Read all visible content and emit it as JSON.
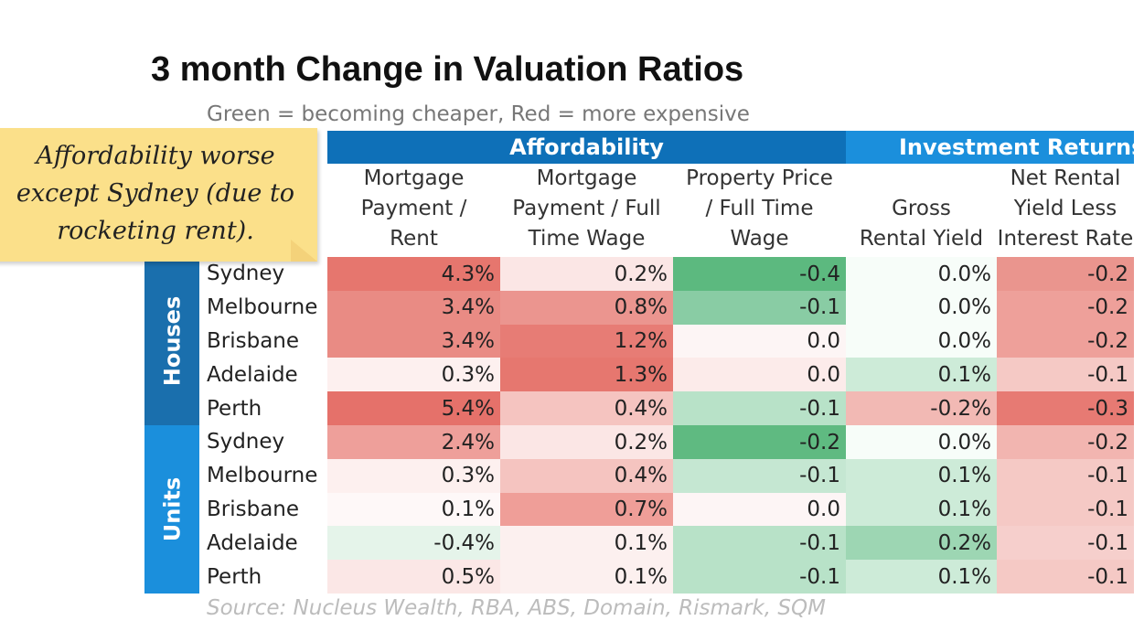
{
  "chart_data": {
    "type": "table",
    "title": "3 month Change in Valuation Ratios",
    "subtitle": "Green = becoming cheaper, Red = more expensive",
    "source": "Source: Nucleus Wealth, RBA, ABS, Domain, Rismark, SQM",
    "column_groups": [
      {
        "name": "Affordability",
        "color": "#0e70b8"
      },
      {
        "name": "Investment Returns",
        "color": "#1b8fdc"
      }
    ],
    "columns": [
      {
        "label_lines": [
          "Mortgage",
          "Payment /",
          "Rent"
        ],
        "group": 0
      },
      {
        "label_lines": [
          "Mortgage",
          "Payment / Full",
          "Time Wage"
        ],
        "group": 0
      },
      {
        "label_lines": [
          "Property Price",
          "/ Full Time",
          "Wage"
        ],
        "group": 0
      },
      {
        "label_lines": [
          "Gross",
          "Rental Yield"
        ],
        "group": 1
      },
      {
        "label_lines": [
          "Net Rental",
          "Yield Less",
          "Interest Rate"
        ],
        "group": 1
      }
    ],
    "sections": [
      {
        "name": "Houses",
        "color": "#1a6fad",
        "rows": [
          {
            "city": "Sydney",
            "values": [
              "4.3%",
              "0.2%",
              "-0.4",
              "0.0%",
              "-0.2"
            ]
          },
          {
            "city": "Melbourne",
            "values": [
              "3.4%",
              "0.8%",
              "-0.1",
              "0.0%",
              "-0.2"
            ]
          },
          {
            "city": "Brisbane",
            "values": [
              "3.4%",
              "1.2%",
              "0.0",
              "0.0%",
              "-0.2"
            ]
          },
          {
            "city": "Adelaide",
            "values": [
              "0.3%",
              "1.3%",
              "0.0",
              "0.1%",
              "-0.1"
            ]
          },
          {
            "city": "Perth",
            "values": [
              "5.4%",
              "0.4%",
              "-0.1",
              "-0.2%",
              "-0.3"
            ]
          }
        ]
      },
      {
        "name": "Units",
        "color": "#1b8fdc",
        "rows": [
          {
            "city": "Sydney",
            "values": [
              "2.4%",
              "0.2%",
              "-0.2",
              "0.0%",
              "-0.2"
            ]
          },
          {
            "city": "Melbourne",
            "values": [
              "0.3%",
              "0.4%",
              "-0.1",
              "0.1%",
              "-0.1"
            ]
          },
          {
            "city": "Brisbane",
            "values": [
              "0.1%",
              "0.7%",
              "0.0",
              "0.1%",
              "-0.1"
            ]
          },
          {
            "city": "Adelaide",
            "values": [
              "-0.4%",
              "0.1%",
              "-0.1",
              "0.2%",
              "-0.1"
            ]
          },
          {
            "city": "Perth",
            "values": [
              "0.5%",
              "0.1%",
              "-0.1",
              "0.1%",
              "-0.1"
            ]
          }
        ]
      }
    ],
    "cell_colors": [
      [
        "#e6766e",
        "#fbe6e5",
        "#5cb97f",
        "#f7fdf9",
        "#ea958e"
      ],
      [
        "#e98b84",
        "#eb958f",
        "#89cca4",
        "#f7fdf9",
        "#eea09a"
      ],
      [
        "#e98b84",
        "#e77c75",
        "#fdf5f5",
        "#f7fdf9",
        "#eea09a"
      ],
      [
        "#fdf0ef",
        "#e6776f",
        "#fcebea",
        "#cdebd8",
        "#f5c9c5"
      ],
      [
        "#e5716a",
        "#f5c4c0",
        "#b8e2c8",
        "#f2b9b4",
        "#e77a73"
      ],
      [
        "#ee9f9a",
        "#fbe6e5",
        "#5fba81",
        "#f7fdf9",
        "#f2b5b0"
      ],
      [
        "#fdf0ef",
        "#f5c4c0",
        "#c5e7d2",
        "#cdebd8",
        "#f5c9c5"
      ],
      [
        "#fef8f8",
        "#ef9e98",
        "#fdf5f5",
        "#cdebd8",
        "#f5c9c5"
      ],
      [
        "#e5f4ea",
        "#fcf0ef",
        "#b8e2c8",
        "#9dd6b3",
        "#f6cfcc"
      ],
      [
        "#fbe7e6",
        "#fcf0ef",
        "#b8e2c8",
        "#cdebd8",
        "#f5c9c5"
      ]
    ]
  },
  "note": {
    "lines": [
      "Affordability worse",
      "except Sydney (due to",
      "rocketing rent)."
    ]
  }
}
